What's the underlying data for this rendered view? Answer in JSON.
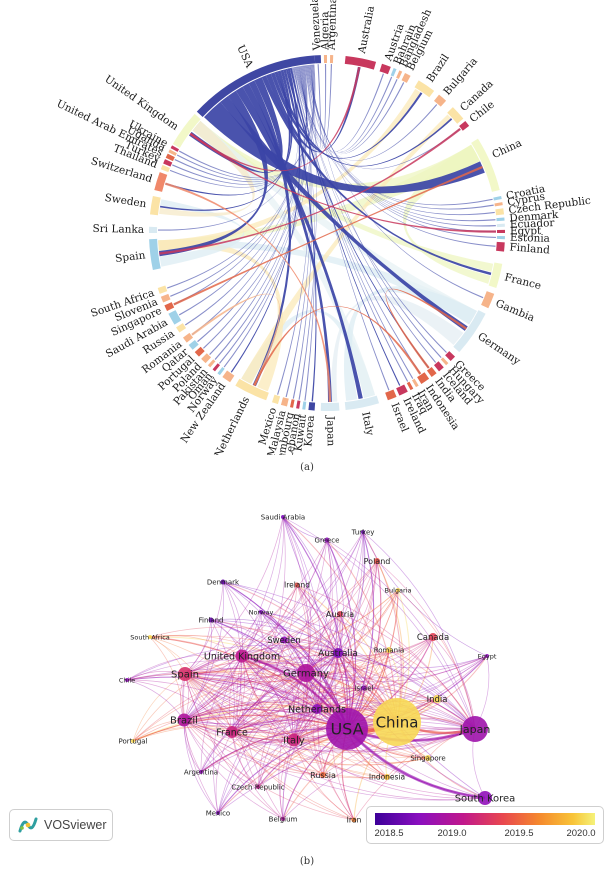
{
  "panel_a": {
    "caption": "(a)",
    "countries": [
      "Venezuela",
      "Algeria",
      "Argentina",
      "Australia",
      "Austria",
      "Bahrain",
      "Bangladesh",
      "Belgium",
      "Brazil",
      "Bulgaria",
      "Canada",
      "Chile",
      "China",
      "Croatia",
      "Cyprus",
      "Czech Republic",
      "Denmark",
      "Ecuador",
      "Egypt",
      "Estonia",
      "Finland",
      "France",
      "Gambia",
      "Germany",
      "Greece",
      "Hungary",
      "Iceland",
      "India",
      "Indonesia",
      "Iran",
      "Iraq",
      "Ireland",
      "Israel",
      "Italy",
      "Japan",
      "Korea",
      "Kuwait",
      "Lebanon",
      "Luxembourg",
      "Malaysia",
      "Mexico",
      "Netherlands",
      "New Zealand",
      "Norway",
      "Oman",
      "Pakistan",
      "Poland",
      "Portugal",
      "Qatar",
      "Romania",
      "Russia",
      "Saudi Arabia",
      "Singapore",
      "Slovenia",
      "South Africa",
      "Spain",
      "Sri Lanka",
      "Sweden",
      "Switzerland",
      "Thailand",
      "Turkey",
      "United Arab Emirates",
      "Uganda",
      "Ukraine",
      "United Kingdom",
      "USA"
    ],
    "segment_colors": [
      "#3f47a3",
      "#f6b48a",
      "#f6b48a",
      "#c8385e",
      "#c8385e",
      "#9fd1e8",
      "#f6b48a",
      "#f6b48a",
      "#fbe3a6",
      "#f6b48a",
      "#fbe3a6",
      "#c8385e",
      "#f2f8c8",
      "#9fd1e8",
      "#f6b48a",
      "#fbe3a6",
      "#9fd1e8",
      "#d9eaf2",
      "#c8385e",
      "#9fd1e8",
      "#c8385e",
      "#f2f8c8",
      "#f6b48a",
      "#d9eaf2",
      "#c8385e",
      "#f6b48a",
      "#c8385e",
      "#e2674a",
      "#e2674a",
      "#f6b48a",
      "#e2674a",
      "#c8385e",
      "#e2674a",
      "#d9eaf2",
      "#d9eaf2",
      "#3f47a3",
      "#9fd1e8",
      "#c8385e",
      "#e2674a",
      "#f6b48a",
      "#fbe3a6",
      "#fbe3a6",
      "#f6b48a",
      "#9fd1e8",
      "#c8385e",
      "#f6b48a",
      "#f6b48a",
      "#e2674a",
      "#9fd1e8",
      "#f6b48a",
      "#fbe3a6",
      "#9fd1e8",
      "#e2674a",
      "#f6b48a",
      "#fbe3a6",
      "#9fd1e8",
      "#d9eaf2",
      "#fbe3a6",
      "#f0886a",
      "#fbe3a6",
      "#c8385e",
      "#e2674a",
      "#f6b48a",
      "#c8385e",
      "#f2f8c8",
      "#3f47a3"
    ]
  },
  "panel_b": {
    "caption": "(b)",
    "logo_text": "VOSviewer",
    "legend_ticks": [
      "2018.5",
      "2019.0",
      "2019.5",
      "2020.0"
    ],
    "legend_colors": [
      "#3d0099",
      "#c0188c",
      "#f58a2d",
      "#f5f27a"
    ],
    "nodes": [
      {
        "label": "Saudi Arabia",
        "value": 2018.6
      },
      {
        "label": "Turkey",
        "value": 2018.5
      },
      {
        "label": "Greece",
        "value": 2018.7
      },
      {
        "label": "Poland",
        "value": 2019.4
      },
      {
        "label": "Bulgaria",
        "value": 2020.0
      },
      {
        "label": "Denmark",
        "value": 2018.5
      },
      {
        "label": "Ireland",
        "value": 2019.4
      },
      {
        "label": "Austria",
        "value": 2019.3
      },
      {
        "label": "Norway",
        "value": 2018.6
      },
      {
        "label": "Finland",
        "value": 2018.5
      },
      {
        "label": "Sweden",
        "value": 2018.7
      },
      {
        "label": "Canada",
        "value": 2019.3
      },
      {
        "label": "South Africa",
        "value": 2020.0
      },
      {
        "label": "United Kingdom",
        "value": 2019.0
      },
      {
        "label": "Australia",
        "value": 2018.6
      },
      {
        "label": "Romania",
        "value": 2020.0
      },
      {
        "label": "Egypt",
        "value": 2018.7
      },
      {
        "label": "Spain",
        "value": 2019.2
      },
      {
        "label": "Germany",
        "value": 2018.9
      },
      {
        "label": "Chile",
        "value": 2018.7
      },
      {
        "label": "Israel",
        "value": 2018.7
      },
      {
        "label": "India",
        "value": 2020.0
      },
      {
        "label": "Netherlands",
        "value": 2018.7
      },
      {
        "label": "USA",
        "value": 2018.8
      },
      {
        "label": "China",
        "value": 2020.0
      },
      {
        "label": "Japan",
        "value": 2018.8
      },
      {
        "label": "Brazil",
        "value": 2018.9
      },
      {
        "label": "France",
        "value": 2019.1
      },
      {
        "label": "Italy",
        "value": 2019.1
      },
      {
        "label": "Portugal",
        "value": 2020.0
      },
      {
        "label": "Singapore",
        "value": 2020.0
      },
      {
        "label": "Argentina",
        "value": 2018.7
      },
      {
        "label": "Russia",
        "value": 2019.5
      },
      {
        "label": "Indonesia",
        "value": 2019.9
      },
      {
        "label": "South Korea",
        "value": 2018.7
      },
      {
        "label": "Czech Republic",
        "value": 2019.0
      },
      {
        "label": "Mexico",
        "value": 2018.6
      },
      {
        "label": "Belgium",
        "value": 2018.9
      },
      {
        "label": "Iran",
        "value": 2019.6
      }
    ]
  }
}
